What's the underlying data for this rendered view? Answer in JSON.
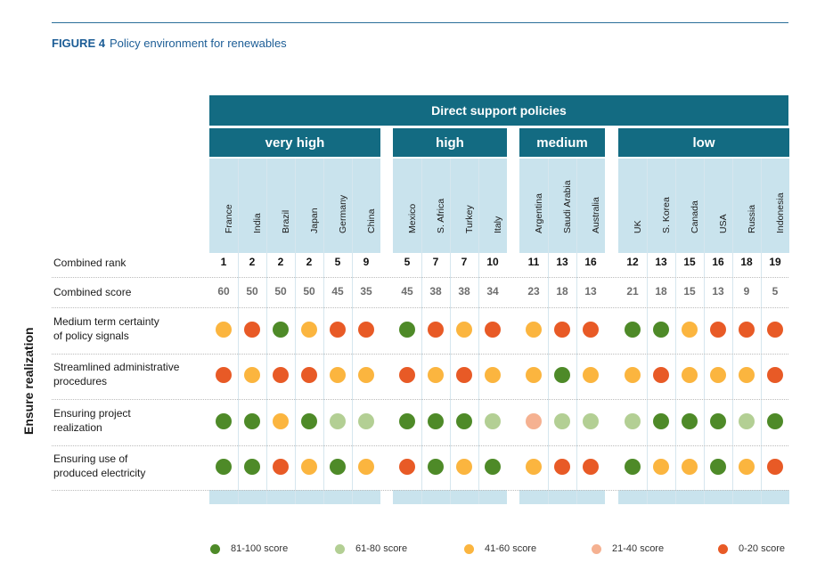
{
  "figure": {
    "number": "FIGURE 4",
    "title": "Policy environment for renewables"
  },
  "header": {
    "main": "Direct support policies"
  },
  "side_label": "Ensure realization",
  "colors": {
    "header_band": "#136b82",
    "column_bg": "#c9e3ed",
    "81-100": "#4e8a28",
    "61-80": "#b3cf94",
    "41-60": "#fbb53f",
    "21-40": "#f5b191",
    "0-20": "#e85a26"
  },
  "chart_data": {
    "type": "table",
    "groups": [
      {
        "name": "very high",
        "countries": [
          "France",
          "India",
          "Brazil",
          "Japan",
          "Germany",
          "China"
        ]
      },
      {
        "name": "high",
        "countries": [
          "Mexico",
          "S. Africa",
          "Turkey",
          "Italy"
        ]
      },
      {
        "name": "medium",
        "countries": [
          "Argentina",
          "Saudi Arabia",
          "Australia"
        ]
      },
      {
        "name": "low",
        "countries": [
          "UK",
          "S. Korea",
          "Canada",
          "USA",
          "Russia",
          "Indonesia"
        ]
      }
    ],
    "combined_rank": {
      "label": "Combined rank",
      "values": [
        1,
        2,
        2,
        2,
        5,
        9,
        5,
        7,
        7,
        10,
        11,
        13,
        16,
        12,
        13,
        15,
        16,
        18,
        19
      ]
    },
    "combined_score": {
      "label": "Combined score",
      "values": [
        60,
        50,
        50,
        50,
        45,
        35,
        45,
        38,
        38,
        34,
        23,
        18,
        13,
        21,
        18,
        15,
        13,
        9,
        5
      ]
    },
    "rows": [
      {
        "label": [
          "Medium term certainty",
          "of policy signals"
        ],
        "values": [
          "41-60",
          "0-20",
          "81-100",
          "41-60",
          "0-20",
          "0-20",
          "81-100",
          "0-20",
          "41-60",
          "0-20",
          "41-60",
          "0-20",
          "0-20",
          "81-100",
          "81-100",
          "41-60",
          "0-20",
          "0-20",
          "0-20"
        ]
      },
      {
        "label": [
          "Streamlined administrative",
          "procedures"
        ],
        "values": [
          "0-20",
          "41-60",
          "0-20",
          "0-20",
          "41-60",
          "41-60",
          "0-20",
          "41-60",
          "0-20",
          "41-60",
          "41-60",
          "81-100",
          "41-60",
          "41-60",
          "0-20",
          "41-60",
          "41-60",
          "41-60",
          "0-20"
        ]
      },
      {
        "label": [
          "Ensuring project",
          "realization"
        ],
        "values": [
          "81-100",
          "81-100",
          "41-60",
          "81-100",
          "61-80",
          "61-80",
          "81-100",
          "81-100",
          "81-100",
          "61-80",
          "21-40",
          "61-80",
          "61-80",
          "61-80",
          "81-100",
          "81-100",
          "81-100",
          "61-80",
          "81-100"
        ]
      },
      {
        "label": [
          "Ensuring use of",
          "produced electricity"
        ],
        "values": [
          "81-100",
          "81-100",
          "0-20",
          "41-60",
          "81-100",
          "41-60",
          "0-20",
          "81-100",
          "41-60",
          "81-100",
          "41-60",
          "0-20",
          "0-20",
          "81-100",
          "41-60",
          "41-60",
          "81-100",
          "41-60",
          "0-20"
        ]
      }
    ],
    "legend": [
      {
        "key": "81-100",
        "label": "81-100 score"
      },
      {
        "key": "61-80",
        "label": "61-80 score"
      },
      {
        "key": "41-60",
        "label": "41-60 score"
      },
      {
        "key": "21-40",
        "label": "21-40 score"
      },
      {
        "key": "0-20",
        "label": "0-20 score"
      }
    ]
  }
}
